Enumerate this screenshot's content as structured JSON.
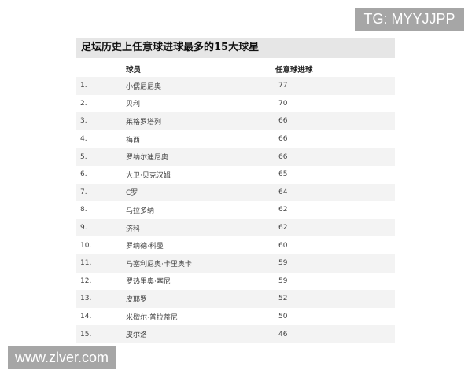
{
  "watermarks": {
    "top_right": "TG: MYYJJPP",
    "bottom_left": "www.zlver.com"
  },
  "title": "足坛历史上任意球进球最多的15大球星",
  "headers": {
    "player": "球员",
    "goals": "任意球进球"
  },
  "rows": [
    {
      "rank": "1.",
      "name": "小儒尼尼奥",
      "goals": "77"
    },
    {
      "rank": "2.",
      "name": "贝利",
      "goals": "70"
    },
    {
      "rank": "3.",
      "name": "莱格罗塔列",
      "goals": "66"
    },
    {
      "rank": "4.",
      "name": "梅西",
      "goals": "66"
    },
    {
      "rank": "5.",
      "name": "罗纳尔迪尼奥",
      "goals": "66"
    },
    {
      "rank": "6.",
      "name": "大卫·贝克汉姆",
      "goals": "65"
    },
    {
      "rank": "7.",
      "name": "C罗",
      "goals": "64"
    },
    {
      "rank": "8.",
      "name": "马拉多纳",
      "goals": "62"
    },
    {
      "rank": "9.",
      "name": "济科",
      "goals": "62"
    },
    {
      "rank": "10.",
      "name": "罗纳德·科曼",
      "goals": "60"
    },
    {
      "rank": "11.",
      "name": "马塞利尼奥·卡里奥卡",
      "goals": "59"
    },
    {
      "rank": "12.",
      "name": "罗热里奥·塞尼",
      "goals": "59"
    },
    {
      "rank": "13.",
      "name": "皮耶罗",
      "goals": "52"
    },
    {
      "rank": "14.",
      "name": "米歇尔·普拉蒂尼",
      "goals": "50"
    },
    {
      "rank": "15.",
      "name": "皮尔洛",
      "goals": "46"
    }
  ]
}
